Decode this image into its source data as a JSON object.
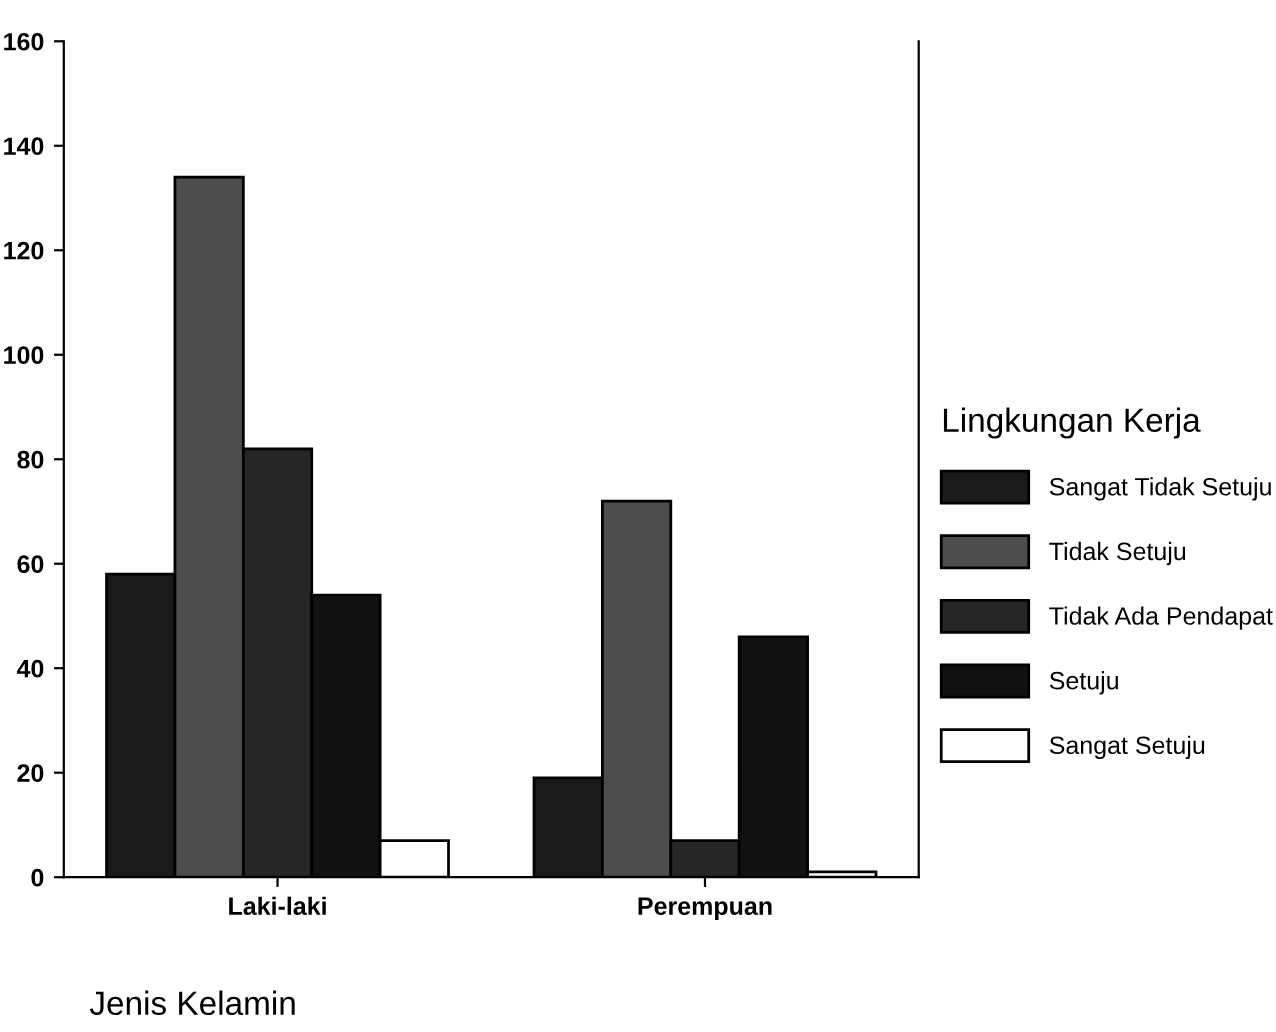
{
  "chart_data": {
    "type": "bar",
    "xlabel": "Jenis Kelamin",
    "legend_title": "Lingkungan Kerja",
    "categories": [
      "Laki-laki",
      "Perempuan"
    ],
    "series": [
      {
        "name": "Sangat Tidak Setuju",
        "color": "#1a1a1a",
        "values": [
          58,
          19
        ]
      },
      {
        "name": "Tidak Setuju",
        "color": "#4d4d4d",
        "values": [
          134,
          72
        ]
      },
      {
        "name": "Tidak Ada Pendapat",
        "color": "#262626",
        "values": [
          82,
          7
        ]
      },
      {
        "name": "Setuju",
        "color": "#111111",
        "values": [
          54,
          46
        ]
      },
      {
        "name": "Sangat Setuju",
        "color": "#ffffff",
        "values": [
          7,
          1
        ]
      }
    ],
    "ylim": [
      0,
      160
    ],
    "yticks": [
      0,
      20,
      40,
      60,
      80,
      100,
      120,
      140,
      160
    ],
    "grid": false,
    "legend": "right"
  }
}
